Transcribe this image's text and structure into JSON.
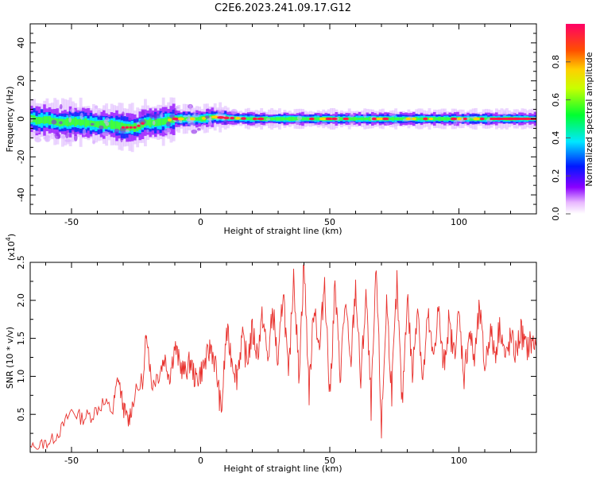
{
  "title": "C2E6.2023.241.09.17.G12",
  "chart_data": [
    {
      "type": "heatmap",
      "xlabel": "Height of straight line (km)",
      "ylabel": "Frequency (Hz)",
      "xlim": [
        -66,
        130
      ],
      "ylim": [
        -50,
        50
      ],
      "xticks": [
        -50,
        0,
        50,
        100
      ],
      "yticks": [
        -40,
        -20,
        0,
        20,
        40
      ],
      "ridge": [
        [
          -64,
          -1
        ],
        [
          -60,
          -0.5
        ],
        [
          -55,
          -2
        ],
        [
          -50,
          -1.5
        ],
        [
          -45,
          -2
        ],
        [
          -40,
          -3
        ],
        [
          -35,
          -3
        ],
        [
          -30,
          -4.5
        ],
        [
          -25,
          -4.5
        ],
        [
          -22,
          -2
        ],
        [
          -18,
          -2
        ],
        [
          -15,
          -1.5
        ],
        [
          -10,
          0
        ],
        [
          -5,
          0
        ],
        [
          0,
          0
        ],
        [
          5,
          1
        ],
        [
          10,
          0.5
        ],
        [
          20,
          0
        ],
        [
          40,
          0
        ],
        [
          60,
          0
        ],
        [
          80,
          0
        ],
        [
          100,
          0
        ],
        [
          130,
          0
        ]
      ],
      "colorbar": {
        "label": "Normalized spectral amplitude",
        "ticks": [
          "0.0",
          "0.2",
          "0.4",
          "0.6",
          "0.8"
        ],
        "range": [
          0,
          1
        ]
      }
    },
    {
      "type": "line",
      "xlabel": "Height of straight line (km)",
      "ylabel": "SNR (10 * v/v)",
      "multiplier_label": "(x10",
      "multiplier_exp": "4",
      "xlim": [
        -66,
        130
      ],
      "ylim": [
        0,
        2.5
      ],
      "xticks": [
        -50,
        0,
        50,
        100
      ],
      "yticks": [
        "0.5",
        "1.0",
        "1.5",
        "2.0",
        "2.5"
      ],
      "series": [
        {
          "color": "#e8312d",
          "x": [
            -66,
            -62,
            -58,
            -54,
            -50,
            -46,
            -42,
            -38,
            -34,
            -32,
            -30,
            -28,
            -26,
            -22,
            -21,
            -19,
            -16,
            -14,
            -12,
            -10,
            -8,
            -6,
            -4,
            -2,
            0,
            2,
            4,
            6,
            8,
            10,
            12,
            14,
            16,
            18,
            20,
            22,
            24,
            26,
            28,
            30,
            32,
            34,
            36,
            38,
            40,
            42,
            44,
            46,
            48,
            50,
            52,
            54,
            56,
            58,
            60,
            62,
            64,
            66,
            68,
            70,
            72,
            74,
            76,
            78,
            80,
            82,
            84,
            86,
            88,
            90,
            92,
            94,
            96,
            98,
            100,
            102,
            104,
            106,
            108,
            110,
            112,
            114,
            116,
            118,
            120,
            122,
            124,
            126,
            128,
            130
          ],
          "y": [
            0.05,
            0.1,
            0.15,
            0.3,
            0.55,
            0.45,
            0.5,
            0.65,
            0.55,
            1.0,
            0.6,
            0.4,
            0.7,
            1.0,
            1.65,
            0.9,
            1.05,
            1.25,
            1.0,
            1.4,
            1.15,
            1.05,
            1.2,
            0.95,
            1.05,
            1.2,
            1.4,
            1.1,
            0.5,
            1.6,
            1.25,
            1.0,
            1.5,
            1.2,
            1.6,
            1.3,
            1.8,
            1.2,
            1.9,
            1.1,
            2.2,
            0.9,
            2.4,
            1.0,
            2.5,
            0.8,
            2.0,
            1.3,
            2.3,
            0.7,
            2.2,
            1.0,
            2.0,
            1.1,
            2.2,
            0.9,
            2.1,
            0.6,
            2.4,
            0.3,
            2.0,
            0.8,
            2.2,
            0.6,
            2.1,
            1.0,
            2.0,
            0.9,
            1.8,
            1.2,
            1.9,
            1.1,
            1.7,
            1.3,
            1.8,
            1.0,
            1.6,
            1.2,
            1.9,
            1.1,
            1.6,
            1.3,
            1.7,
            1.2,
            1.5,
            1.3,
            1.6,
            1.35,
            1.45,
            1.4
          ]
        }
      ]
    }
  ]
}
